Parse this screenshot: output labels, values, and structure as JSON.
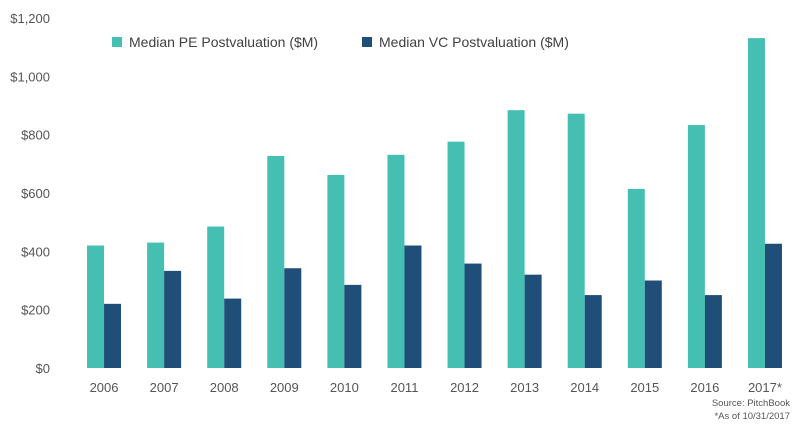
{
  "chart_data": {
    "type": "bar",
    "title": "",
    "xlabel": "",
    "ylabel": "",
    "categories": [
      "2006",
      "2007",
      "2008",
      "2009",
      "2010",
      "2011",
      "2012",
      "2013",
      "2014",
      "2015",
      "2016",
      "2017*"
    ],
    "series": [
      {
        "name": "Median PE Postvaluation ($M)",
        "color": "#45bfb2",
        "values": [
          420,
          430,
          485,
          727,
          662,
          731,
          776,
          884,
          872,
          614,
          833,
          1131
        ]
      },
      {
        "name": "Median VC Postvaluation ($M)",
        "color": "#1f4e79",
        "values": [
          220,
          333,
          238,
          342,
          285,
          420,
          358,
          320,
          250,
          300,
          250,
          426
        ]
      }
    ],
    "yticks": [
      {
        "value": 0,
        "label": "$0"
      },
      {
        "value": 200,
        "label": "$200"
      },
      {
        "value": 400,
        "label": "$400"
      },
      {
        "value": 600,
        "label": "$600"
      },
      {
        "value": 800,
        "label": "$800"
      },
      {
        "value": 1000,
        "label": "$1,000"
      },
      {
        "value": 1200,
        "label": "$1,200"
      }
    ],
    "ylim": [
      0,
      1200
    ],
    "grid": false,
    "legend_position": "top"
  },
  "notes": {
    "source": "Source: PitchBook",
    "as_of": "*As of 10/31/2017"
  }
}
